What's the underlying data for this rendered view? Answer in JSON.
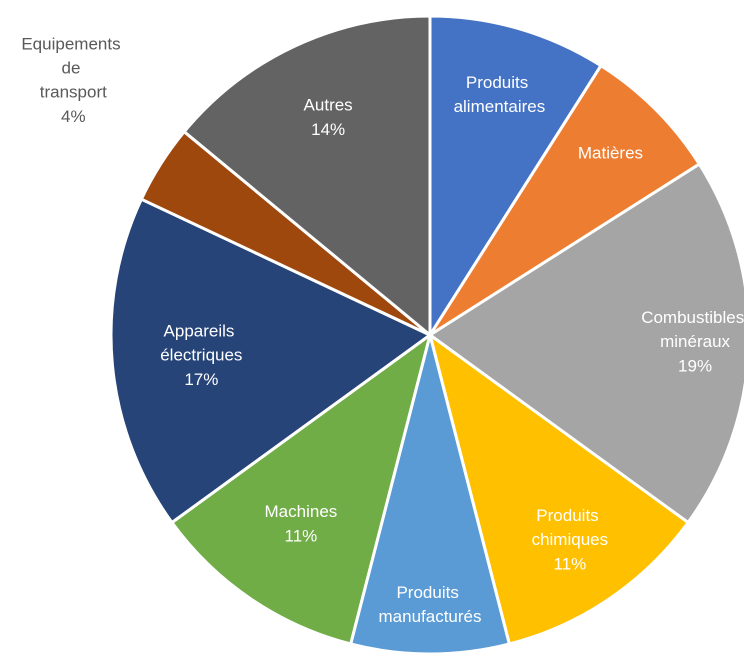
{
  "chart_data": {
    "type": "pie",
    "categories": [
      "Produits alimentaires",
      "Matières",
      "Combustibles minéraux",
      "Produits chimiques",
      "Produits manufacturés",
      "Machines",
      "Appareils électriques",
      "Equipements de transport",
      "Autres"
    ],
    "values": [
      9,
      7,
      19,
      11,
      8,
      11,
      17,
      4,
      14
    ],
    "value_labels": [
      null,
      null,
      "19%",
      "11%",
      null,
      "11%",
      "17%",
      "4%",
      "14%"
    ],
    "colors": [
      "#4472c4",
      "#ed7d31",
      "#a5a5a5",
      "#ffc000",
      "#5b9bd5",
      "#70ad47",
      "#264478",
      "#9e480e",
      "#636363"
    ]
  }
}
